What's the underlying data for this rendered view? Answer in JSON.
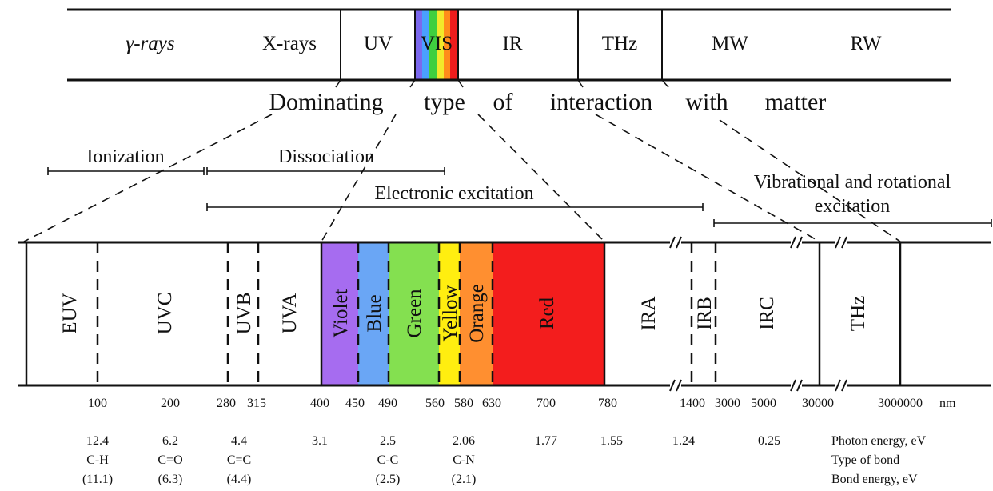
{
  "top_band": {
    "regions": [
      {
        "label": "γ-rays"
      },
      {
        "label": "X-rays"
      },
      {
        "label": "UV"
      },
      {
        "label": "VIS"
      },
      {
        "label": "IR"
      },
      {
        "label": "THz"
      },
      {
        "label": "MW"
      },
      {
        "label": "RW"
      }
    ],
    "vis_colors": [
      "#7b68ee",
      "#4aa0ff",
      "#3fcf3f",
      "#f2e92a",
      "#ff8c1a",
      "#ee1c1c"
    ]
  },
  "caption": {
    "words": [
      "Dominating",
      "type",
      "of",
      "interaction",
      "with",
      "matter"
    ]
  },
  "interactions": {
    "ionization": "Ionization",
    "dissociation": "Dissociation",
    "electronic": "Electronic excitation",
    "vibrational_line1": "Vibrational and rotational",
    "vibrational_line2": "excitation"
  },
  "bottom_band": {
    "regions": [
      {
        "label": "EUV"
      },
      {
        "label": "UVC"
      },
      {
        "label": "UVB"
      },
      {
        "label": "UVA"
      },
      {
        "label": "Violet",
        "color": "#a66cf0"
      },
      {
        "label": "Blue",
        "color": "#6aa6f5"
      },
      {
        "label": "Green",
        "color": "#84e050"
      },
      {
        "label": "Yellow",
        "color": "#ffee10"
      },
      {
        "label": "Orange",
        "color": "#ff8f30"
      },
      {
        "label": "Red",
        "color": "#f31d1d"
      },
      {
        "label": "IRA"
      },
      {
        "label": "IRB"
      },
      {
        "label": "IRC"
      },
      {
        "label": "THz"
      }
    ]
  },
  "wavelengths": [
    "100",
    "200",
    "280",
    "315",
    "400",
    "450",
    "490",
    "560",
    "580",
    "630",
    "700",
    "780",
    "1400",
    "3000",
    "5000",
    "30000",
    "3000000"
  ],
  "wavelength_unit": "nm",
  "photon_energy": [
    "12.4",
    "6.2",
    "4.4",
    "3.1",
    "2.5",
    "2.06",
    "1.77",
    "1.55",
    "1.24",
    "0.25"
  ],
  "bond_types": [
    "C-H",
    "C=O",
    "C=C",
    "C-C",
    "C-N"
  ],
  "bond_energies": [
    "(11.1)",
    "(6.3)",
    "(4.4)",
    "(2.5)",
    "(2.1)"
  ],
  "row_labels": {
    "photon_energy": "Photon energy, eV",
    "bond_type": "Type of bond",
    "bond_energy": "Bond energy, eV"
  }
}
